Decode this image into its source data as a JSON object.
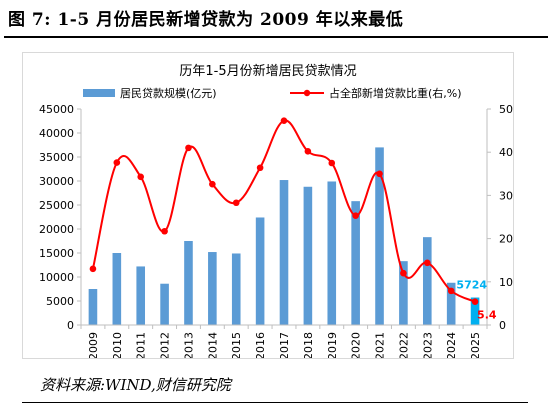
{
  "figure": {
    "title": "图 7:  1-5 月份居民新增贷款为 2009 年以来最低",
    "source": "资料来源:WIND,财信研究院"
  },
  "chart_data": {
    "type": "bar+line",
    "title": "历年1-5月份新增居民贷款情况",
    "categories": [
      "2009",
      "2010",
      "2011",
      "2012",
      "2013",
      "2014",
      "2015",
      "2016",
      "2017",
      "2018",
      "2019",
      "2020",
      "2021",
      "2022",
      "2023",
      "2024",
      "2025"
    ],
    "series": [
      {
        "name": "居民贷款规模(亿元)",
        "type": "bar",
        "axis": "left",
        "color": "#5b9bd5",
        "highlight_color": "#00b0f0",
        "values": [
          7500,
          15000,
          12200,
          8600,
          17500,
          15200,
          14900,
          22400,
          30200,
          28800,
          29900,
          25800,
          37000,
          13300,
          18300,
          8800,
          5724
        ]
      },
      {
        "name": "占全部新增贷款比重(右,%)",
        "type": "line",
        "axis": "right",
        "color": "#ff0000",
        "values": [
          13.0,
          37.6,
          34.3,
          21.7,
          41.0,
          32.6,
          28.3,
          36.4,
          47.3,
          40.2,
          37.5,
          25.3,
          35.0,
          12.0,
          14.4,
          7.9,
          5.4
        ]
      }
    ],
    "y_left": {
      "min": 0,
      "max": 45000,
      "ticks": [
        0,
        5000,
        10000,
        15000,
        20000,
        25000,
        30000,
        35000,
        40000,
        45000
      ]
    },
    "y_right": {
      "min": 0,
      "max": 50,
      "ticks": [
        0,
        10,
        20,
        30,
        40,
        50
      ]
    },
    "annotations": [
      {
        "text": "5724",
        "series": "居民贷款规模(亿元)",
        "category": "2025",
        "color": "#00b0f0"
      },
      {
        "text": "5.4",
        "series": "占全部新增贷款比重(右,%)",
        "category": "2025",
        "color": "#ff0000"
      }
    ],
    "legend_position": "top",
    "grid": false
  }
}
